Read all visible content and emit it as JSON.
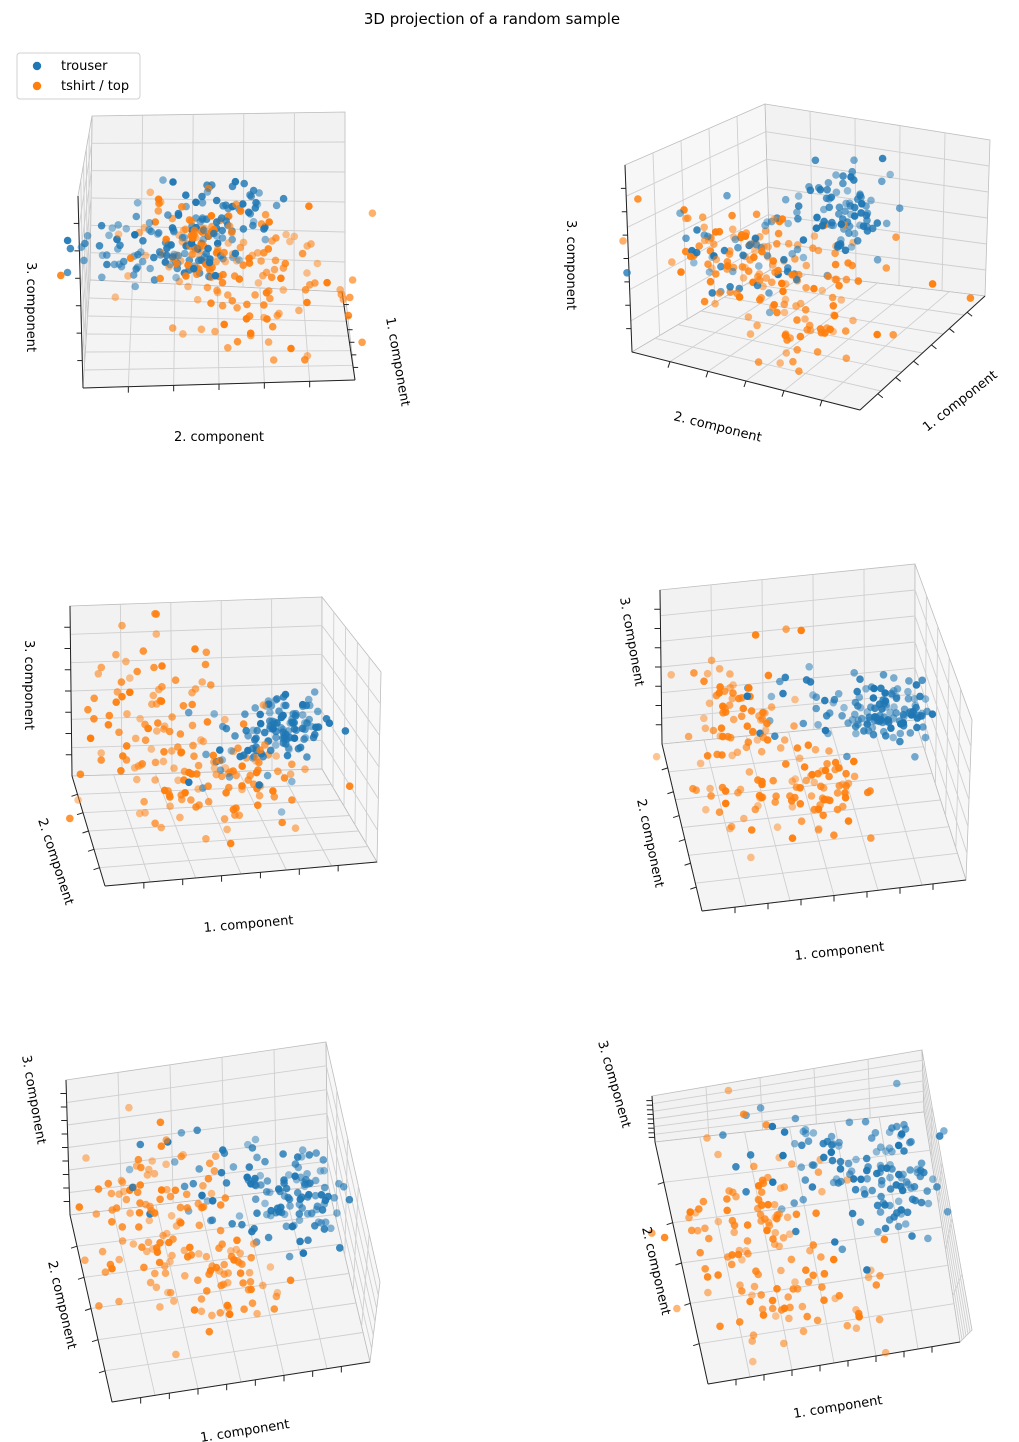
{
  "figure": {
    "title": "3D projection of a random sample"
  },
  "legend": {
    "placement": "top-left",
    "entries": [
      {
        "label": "trouser",
        "color": "#1f77b4"
      },
      {
        "label": "tshirt / top",
        "color": "#ff7f0e"
      }
    ]
  },
  "chart_data": [
    {
      "type": "scatter",
      "view": "panel-1",
      "xlabel": "1. component",
      "ylabel": "2. component",
      "zlabel": "3. component",
      "series": [
        {
          "name": "trouser",
          "color": "#1f77b4"
        },
        {
          "name": "tshirt / top",
          "color": "#ff7f0e"
        }
      ]
    },
    {
      "type": "scatter",
      "view": "panel-2",
      "xlabel": "1. component",
      "ylabel": "2. component",
      "zlabel": "3. component",
      "series": [
        {
          "name": "trouser",
          "color": "#1f77b4"
        },
        {
          "name": "tshirt / top",
          "color": "#ff7f0e"
        }
      ]
    },
    {
      "type": "scatter",
      "view": "panel-3",
      "xlabel": "1. component",
      "ylabel": "2. component",
      "zlabel": "3. component",
      "series": [
        {
          "name": "trouser",
          "color": "#1f77b4"
        },
        {
          "name": "tshirt / top",
          "color": "#ff7f0e"
        }
      ]
    },
    {
      "type": "scatter",
      "view": "panel-4",
      "xlabel": "1. component",
      "ylabel": "2. component",
      "zlabel": "3. component",
      "series": [
        {
          "name": "trouser",
          "color": "#1f77b4"
        },
        {
          "name": "tshirt / top",
          "color": "#ff7f0e"
        }
      ]
    },
    {
      "type": "scatter",
      "view": "panel-5",
      "xlabel": "1. component",
      "ylabel": "2. component",
      "zlabel": "3. component",
      "series": [
        {
          "name": "trouser",
          "color": "#1f77b4"
        },
        {
          "name": "tshirt / top",
          "color": "#ff7f0e"
        }
      ]
    },
    {
      "type": "scatter",
      "view": "panel-6",
      "xlabel": "1. component",
      "ylabel": "2. component",
      "zlabel": "3. component",
      "series": [
        {
          "name": "trouser",
          "color": "#1f77b4"
        },
        {
          "name": "tshirt / top",
          "color": "#ff7f0e"
        }
      ]
    }
  ]
}
